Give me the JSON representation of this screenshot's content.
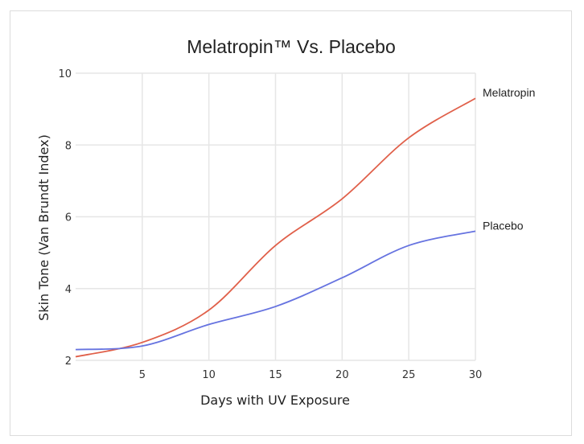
{
  "chart_data": {
    "type": "line",
    "title": "Melatropin™ Vs. Placebo",
    "xlabel": "Days with UV Exposure",
    "ylabel": "Skin Tone (Van Brundt Index)",
    "x": [
      0,
      5,
      10,
      15,
      20,
      25,
      30
    ],
    "xlim": [
      0,
      30
    ],
    "ylim": [
      2,
      10
    ],
    "xticks": [
      5,
      10,
      15,
      20,
      25,
      30
    ],
    "xtick_labels": [
      "5",
      "10",
      "15",
      "20",
      "25",
      "30"
    ],
    "yticks": [
      2,
      4,
      6,
      8,
      10
    ],
    "ytick_labels": [
      "2",
      "4",
      "6",
      "8",
      "10"
    ],
    "grid": true,
    "legend": "direct labels at right end of lines",
    "series": [
      {
        "name": "Melatropin",
        "color": "#e0604a",
        "values": [
          2.1,
          2.5,
          3.4,
          5.2,
          6.5,
          8.2,
          9.3
        ]
      },
      {
        "name": "Placebo",
        "color": "#6673e0",
        "values": [
          2.3,
          2.4,
          3.0,
          3.5,
          4.3,
          5.2,
          5.6
        ]
      }
    ]
  }
}
